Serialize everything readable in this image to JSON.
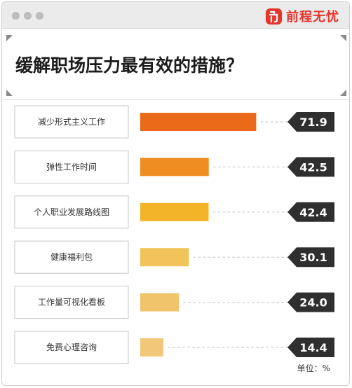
{
  "brand": {
    "name": "前程无忧",
    "logo_icon": "qiancheng-logo-icon",
    "color": "#e8352c"
  },
  "chart_data": {
    "type": "bar",
    "orientation": "horizontal",
    "title": "缓解职场压力最有效的措施？",
    "categories": [
      "减少形式主义工作",
      "弹性工作时间",
      "个人职业发展路线图",
      "健康福利包",
      "工作量可视化看板",
      "免费心理咨询"
    ],
    "values": [
      71.9,
      42.5,
      42.4,
      30.1,
      24.0,
      14.4
    ],
    "value_labels": [
      "71.9",
      "42.5",
      "42.4",
      "30.1",
      "24.0",
      "14.4"
    ],
    "colors": [
      "#ea6a1a",
      "#ef8d22",
      "#f4b42a",
      "#f2c35a",
      "#f0c46a",
      "#f1c87a"
    ],
    "xlim": [
      0,
      100
    ],
    "unit_label": "单位：%",
    "grid": false,
    "legend": "none"
  }
}
